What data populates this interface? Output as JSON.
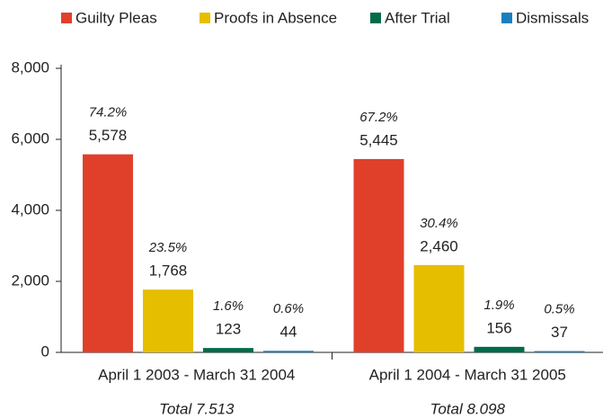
{
  "chart_data": {
    "type": "bar",
    "categories": [
      "April 1 2003 - March 31 2004",
      "April 1 2004 - March 31 2005"
    ],
    "totals": [
      "Total 7.513",
      "Total 8.098"
    ],
    "series": [
      {
        "name": "Guilty Pleas",
        "color": "#e0402a",
        "values": [
          5578,
          5445
        ],
        "value_labels": [
          "5,578",
          "5,445"
        ],
        "percent_labels": [
          "74.2%",
          "67.2%"
        ]
      },
      {
        "name": "Proofs in Absence",
        "color": "#e6be00",
        "values": [
          1768,
          2460
        ],
        "value_labels": [
          "1,768",
          "2,460"
        ],
        "percent_labels": [
          "23.5%",
          "30.4%"
        ]
      },
      {
        "name": "After Trial",
        "color": "#006b4a",
        "values": [
          123,
          156
        ],
        "percent_labels": [
          "1.6%",
          "1.9%"
        ]
      },
      {
        "name": "Dismissals",
        "color": "#1a7fc0",
        "values": [
          44,
          37
        ],
        "percent_labels": [
          "0.6%",
          "0.5%"
        ]
      }
    ],
    "ylim": [
      0,
      8000
    ],
    "yticks": [
      0,
      {
        "value": 2000,
        "label": "2,000"
      },
      {
        "value": 4000,
        "label": "4,000"
      },
      {
        "value": 6000,
        "label": "6,000"
      },
      {
        "value": 8000,
        "label": "8,000"
      }
    ],
    "legend": "top"
  }
}
